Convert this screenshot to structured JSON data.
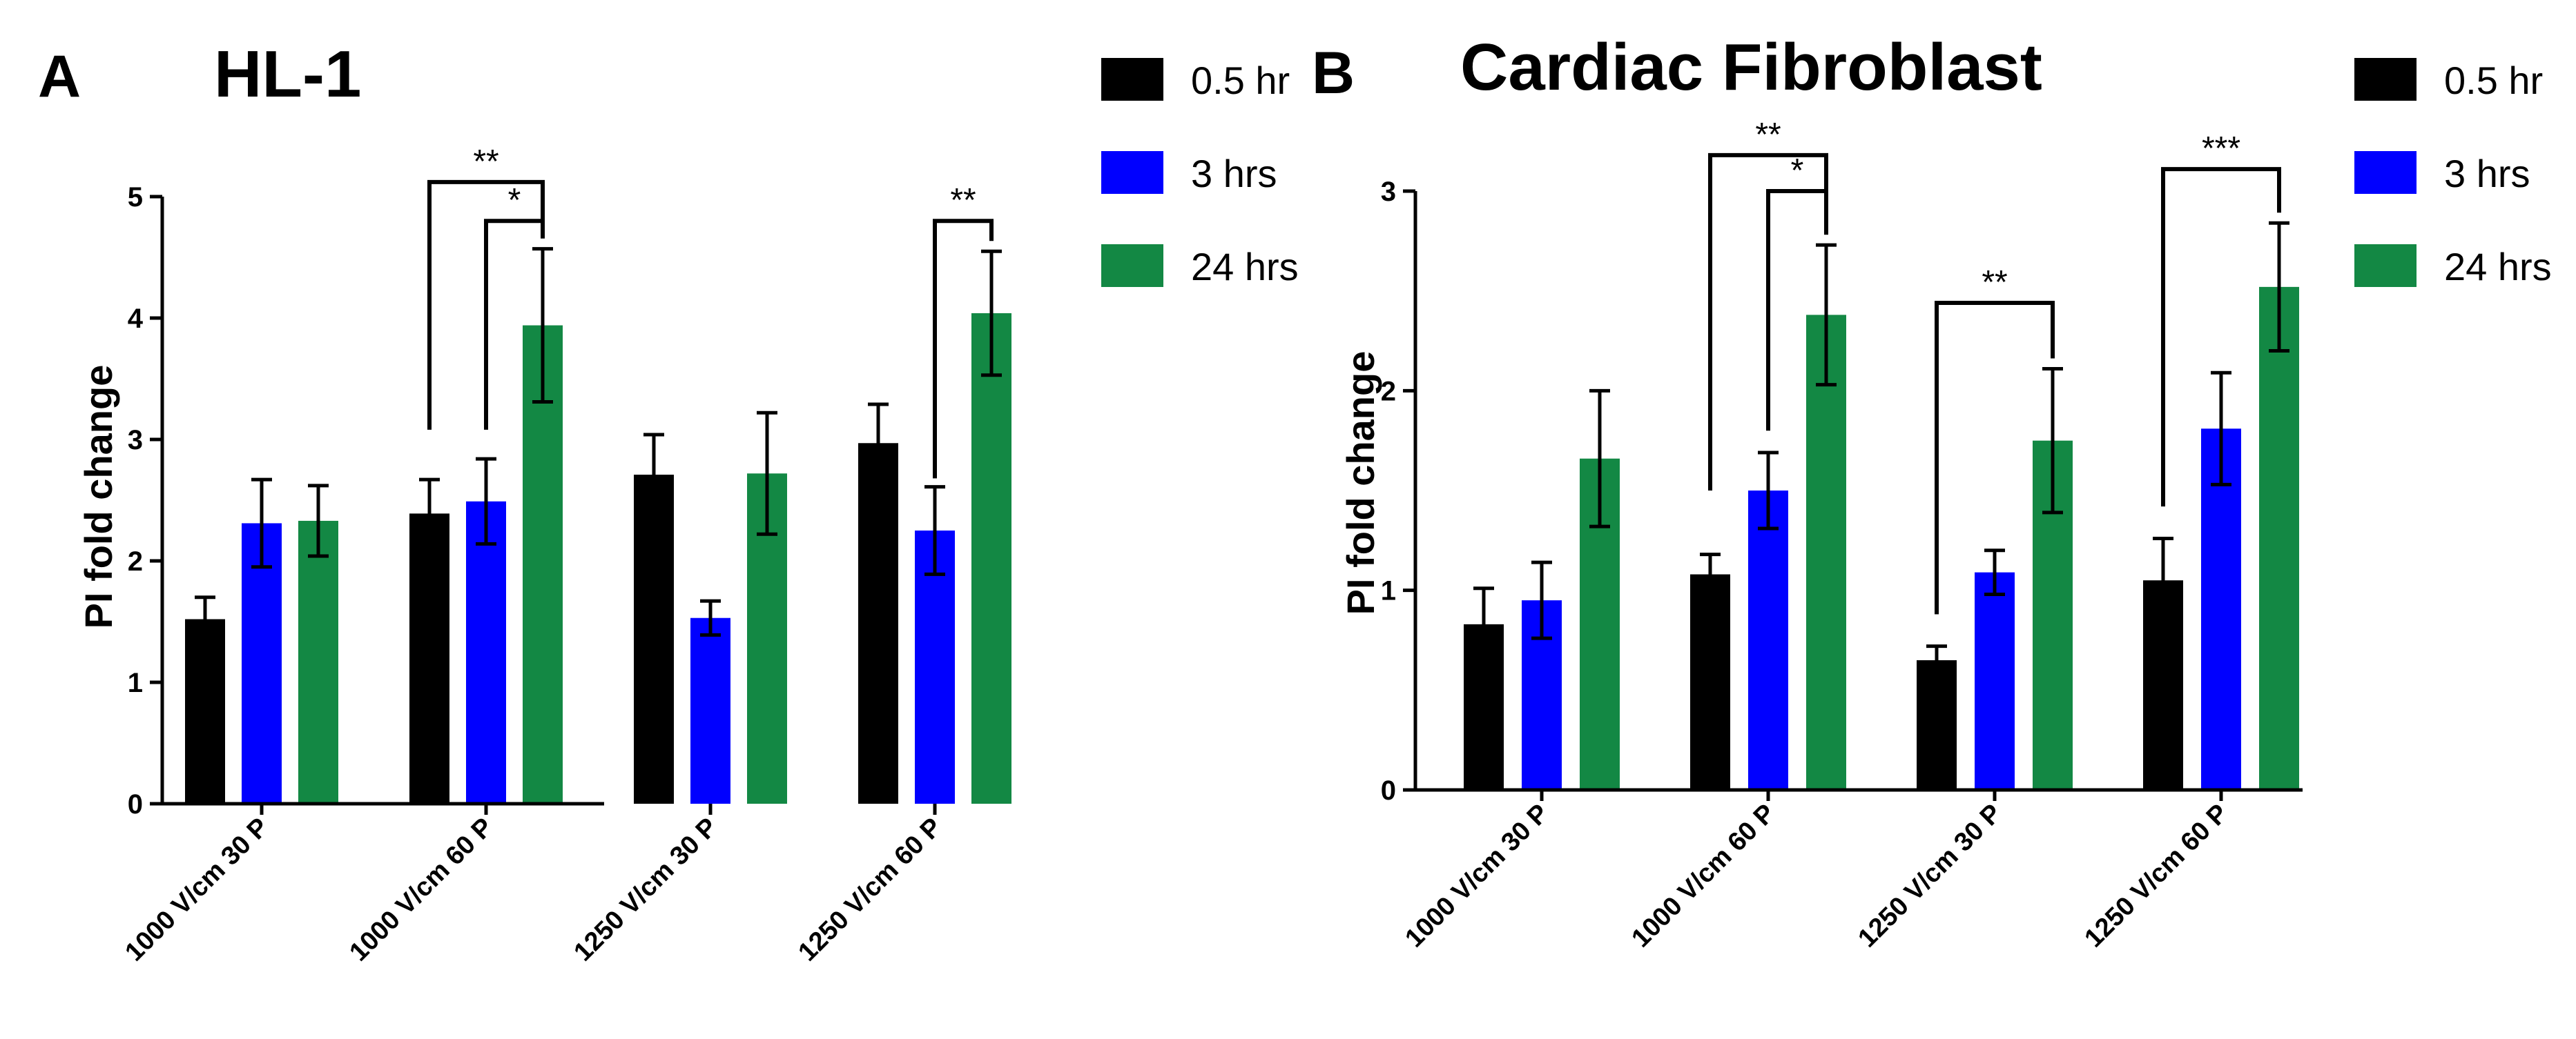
{
  "chart_data": [
    {
      "panel": "A",
      "type": "bar",
      "title": "HL-1",
      "ylabel": "PI fold change",
      "xlabel": "",
      "ylim": [
        0,
        5
      ],
      "yticks": [
        "0",
        "1",
        "2",
        "3",
        "4",
        "5"
      ],
      "categories": [
        "1000 V/cm 30 P",
        "1000 V/cm 60 P",
        "1250 V/cm 30 P",
        "1250 V/cm 60 P"
      ],
      "series": [
        {
          "name": "0.5 hr",
          "color": "#000000",
          "values": [
            1.52,
            2.39,
            2.71,
            2.97
          ],
          "errors": [
            0.18,
            0.28,
            0.33,
            0.32
          ]
        },
        {
          "name": "3 hrs",
          "color": "#0000ff",
          "values": [
            2.31,
            2.49,
            1.53,
            2.25
          ],
          "errors": [
            0.36,
            0.35,
            0.14,
            0.36
          ]
        },
        {
          "name": "24 hrs",
          "color": "#138844",
          "values": [
            2.33,
            3.94,
            2.72,
            4.04
          ],
          "errors": [
            0.29,
            0.63,
            0.5,
            0.51
          ]
        }
      ],
      "legend_position": "top-right",
      "significance": [
        {
          "label": "**",
          "category": 1,
          "from_series": 0,
          "to_series": 2,
          "level": 5.12,
          "from_end": 3.08
        },
        {
          "label": "*",
          "category": 1,
          "from_series": 1,
          "to_series": 2,
          "level": 4.8,
          "from_end": 3.08
        },
        {
          "label": "**",
          "category": 3,
          "from_series": 1,
          "to_series": 2,
          "level": 4.8,
          "from_end": 2.68
        }
      ]
    },
    {
      "panel": "B",
      "type": "bar",
      "title": "Cardiac Fibroblast",
      "ylabel": "PI fold change",
      "xlabel": "",
      "ylim": [
        0,
        3
      ],
      "yticks": [
        "0",
        "1",
        "2",
        "3"
      ],
      "categories": [
        "1000 V/cm 30 P",
        "1000 V/cm 60 P",
        "1250 V/cm 30 P",
        "1250 V/cm 60 P"
      ],
      "series": [
        {
          "name": "0.5 hr",
          "color": "#000000",
          "values": [
            0.83,
            1.08,
            0.65,
            1.05
          ],
          "errors": [
            0.18,
            0.1,
            0.07,
            0.21
          ]
        },
        {
          "name": "3 hrs",
          "color": "#0000ff",
          "values": [
            0.95,
            1.5,
            1.09,
            1.81
          ],
          "errors": [
            0.19,
            0.19,
            0.11,
            0.28
          ]
        },
        {
          "name": "24 hrs",
          "color": "#138844",
          "values": [
            1.66,
            2.38,
            1.75,
            2.52
          ],
          "errors": [
            0.34,
            0.35,
            0.36,
            0.32
          ]
        }
      ],
      "legend_position": "top-right",
      "significance": [
        {
          "label": "**",
          "category": 1,
          "from_series": 0,
          "to_series": 2,
          "level": 3.18,
          "from_end": 1.5
        },
        {
          "label": "*",
          "category": 1,
          "from_series": 1,
          "to_series": 2,
          "level": 3.0,
          "from_end": 1.8
        },
        {
          "label": "**",
          "category": 2,
          "from_series": 0,
          "to_series": 2,
          "level": 2.44,
          "from_end": 0.88
        },
        {
          "label": "***",
          "category": 3,
          "from_series": 0,
          "to_series": 2,
          "level": 3.11,
          "from_end": 1.42
        }
      ]
    }
  ]
}
